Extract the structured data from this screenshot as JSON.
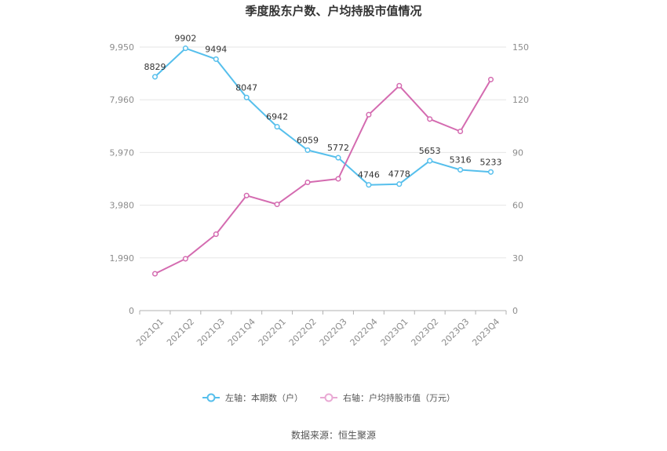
{
  "chart_data": {
    "type": "line",
    "title": "季度股东户数、户均持股市值情况",
    "categories": [
      "2021Q1",
      "2021Q2",
      "2021Q3",
      "2021Q4",
      "2022Q1",
      "2022Q2",
      "2022Q3",
      "2022Q4",
      "2023Q1",
      "2023Q2",
      "2023Q3",
      "2023Q4"
    ],
    "left_axis": {
      "ticks": [
        "0",
        "1,990",
        "3,980",
        "5,970",
        "7,960",
        "9,950"
      ],
      "ylim": [
        0,
        9950
      ]
    },
    "right_axis": {
      "ticks": [
        "0",
        "30",
        "60",
        "90",
        "120",
        "150"
      ],
      "ylim": [
        0,
        150
      ]
    },
    "series": [
      {
        "name": "左轴：本期数（户）",
        "axis": "left",
        "color": "#56bfec",
        "values": [
          8829,
          9902,
          9494,
          8047,
          6942,
          6059,
          5772,
          4746,
          4778,
          5653,
          5316,
          5233
        ],
        "labels": [
          "8829",
          "9902",
          "9494",
          "8047",
          "6942",
          "6059",
          "5772",
          "4746",
          "4778",
          "5653",
          "5316",
          "5233"
        ]
      },
      {
        "name": "右轴：户均持股市值（万元）",
        "axis": "right",
        "color": "#d46bb0",
        "values": [
          21,
          29.5,
          43.5,
          65.5,
          60.5,
          73,
          75,
          111.5,
          128,
          109,
          102,
          131.5
        ]
      }
    ],
    "grid": true,
    "legend_position": "bottom"
  },
  "source": "数据来源：恒生聚源"
}
